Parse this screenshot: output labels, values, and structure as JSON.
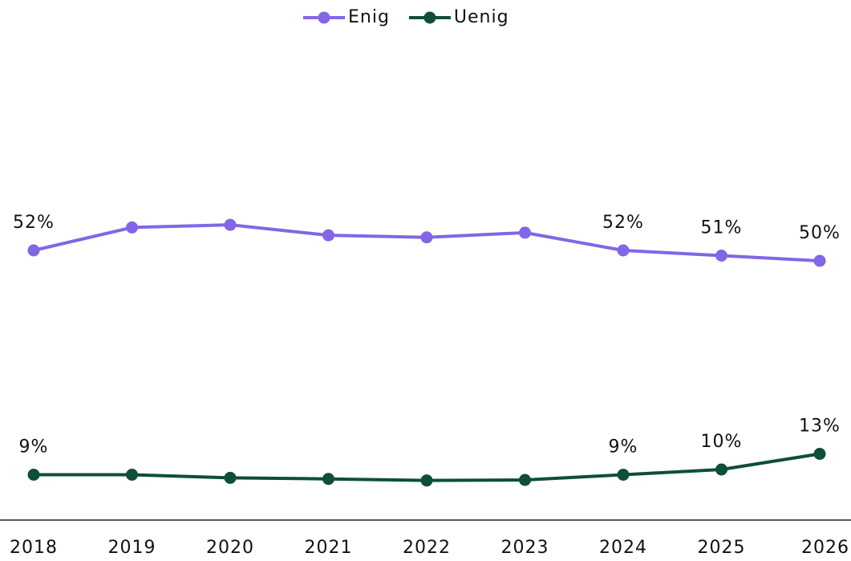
{
  "chart_data": {
    "type": "line",
    "categories": [
      "2018",
      "2019",
      "2020",
      "2021",
      "2022",
      "2023",
      "2024",
      "2025",
      "2026"
    ],
    "series": [
      {
        "name": "Enig",
        "color": "#8266e6",
        "values": [
          52,
          56.4,
          56.9,
          54.9,
          54.5,
          55.4,
          52,
          51,
          50
        ],
        "value_labels": [
          "52%",
          null,
          null,
          null,
          null,
          null,
          "52%",
          "51%",
          "50%"
        ]
      },
      {
        "name": "Uenig",
        "color": "#0e4f36",
        "values": [
          9,
          9,
          8.4,
          8.2,
          7.9,
          8.0,
          9,
          10,
          13
        ],
        "value_labels": [
          "9%",
          null,
          null,
          null,
          null,
          null,
          "9%",
          "10%",
          "13%"
        ]
      }
    ],
    "ylim": [
      0,
      100
    ],
    "legend": "top"
  }
}
